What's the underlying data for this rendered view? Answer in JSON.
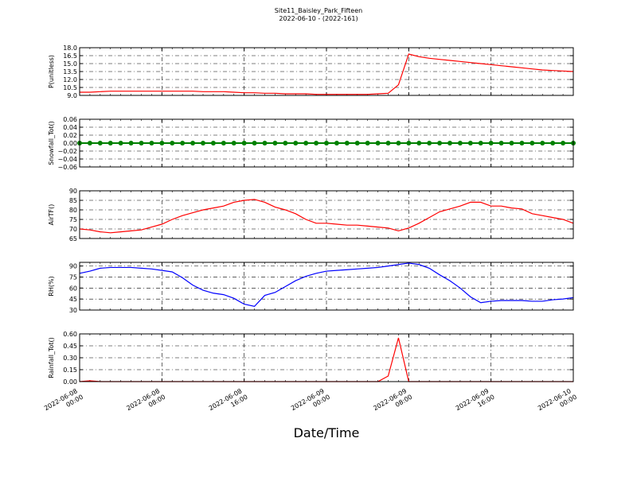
{
  "title": "Site11_Baisley_Park_Fifteen",
  "subtitle": "2022-06-10 - (2022-161)",
  "xlabel": "Date/Time",
  "xlim": [
    "2022-06-08 00:00",
    "2022-06-10 00:00"
  ],
  "xticks": [
    "2022-06-08 00:00",
    "2022-06-08 08:00",
    "2022-06-08 16:00",
    "2022-06-09 00:00",
    "2022-06-09 08:00",
    "2022-06-09 16:00",
    "2022-06-10 00:00"
  ],
  "grid": true,
  "x": [
    "2022-06-08 00:00",
    "2022-06-08 01:00",
    "2022-06-08 02:00",
    "2022-06-08 03:00",
    "2022-06-08 04:00",
    "2022-06-08 05:00",
    "2022-06-08 06:00",
    "2022-06-08 07:00",
    "2022-06-08 08:00",
    "2022-06-08 09:00",
    "2022-06-08 10:00",
    "2022-06-08 11:00",
    "2022-06-08 12:00",
    "2022-06-08 13:00",
    "2022-06-08 14:00",
    "2022-06-08 15:00",
    "2022-06-08 16:00",
    "2022-06-08 17:00",
    "2022-06-08 18:00",
    "2022-06-08 19:00",
    "2022-06-08 20:00",
    "2022-06-08 21:00",
    "2022-06-08 22:00",
    "2022-06-08 23:00",
    "2022-06-09 00:00",
    "2022-06-09 01:00",
    "2022-06-09 02:00",
    "2022-06-09 03:00",
    "2022-06-09 04:00",
    "2022-06-09 05:00",
    "2022-06-09 06:00",
    "2022-06-09 07:00",
    "2022-06-09 08:00",
    "2022-06-09 09:00",
    "2022-06-09 10:00",
    "2022-06-09 11:00",
    "2022-06-09 12:00",
    "2022-06-09 13:00",
    "2022-06-09 14:00",
    "2022-06-09 15:00",
    "2022-06-09 16:00",
    "2022-06-09 17:00",
    "2022-06-09 18:00",
    "2022-06-09 19:00",
    "2022-06-09 20:00",
    "2022-06-09 21:00",
    "2022-06-09 22:00",
    "2022-06-09 23:00",
    "2022-06-10 00:00"
  ],
  "chart_data": [
    {
      "type": "line",
      "ylabel": "P(unitless)",
      "color": "#ff0000",
      "markers": false,
      "ylim": [
        9,
        18
      ],
      "yticks": [
        {
          "value": 9,
          "label": "9.0"
        },
        {
          "value": 10.5,
          "label": "10.5"
        },
        {
          "value": 12,
          "label": "12.0"
        },
        {
          "value": 13.5,
          "label": "13.5"
        },
        {
          "value": 15,
          "label": "15.0"
        },
        {
          "value": 16.5,
          "label": "16.5"
        },
        {
          "value": 18,
          "label": "18.0"
        }
      ],
      "values": [
        9.6,
        9.6,
        9.7,
        9.8,
        9.8,
        9.8,
        9.8,
        9.8,
        9.8,
        9.8,
        9.8,
        9.8,
        9.7,
        9.7,
        9.7,
        9.6,
        9.5,
        9.5,
        9.4,
        9.4,
        9.3,
        9.3,
        9.3,
        9.2,
        9.2,
        9.2,
        9.2,
        9.2,
        9.2,
        9.3,
        9.4,
        11.0,
        16.8,
        16.3,
        16.0,
        15.8,
        15.6,
        15.4,
        15.2,
        15.0,
        14.8,
        14.6,
        14.4,
        14.2,
        14.0,
        13.8,
        13.7,
        13.6,
        13.5
      ]
    },
    {
      "type": "line",
      "ylabel": "Snowfall_Tot()",
      "color": "#008000",
      "markers": true,
      "ylim": [
        -0.06,
        0.06
      ],
      "yticks": [
        {
          "value": -0.06,
          "label": "−0.06"
        },
        {
          "value": -0.04,
          "label": "−0.04"
        },
        {
          "value": -0.02,
          "label": "−0.02"
        },
        {
          "value": 0,
          "label": "0.00"
        },
        {
          "value": 0.02,
          "label": "0.02"
        },
        {
          "value": 0.04,
          "label": "0.04"
        },
        {
          "value": 0.06,
          "label": "0.06"
        }
      ],
      "values": [
        0,
        0,
        0,
        0,
        0,
        0,
        0,
        0,
        0,
        0,
        0,
        0,
        0,
        0,
        0,
        0,
        0,
        0,
        0,
        0,
        0,
        0,
        0,
        0,
        0,
        0,
        0,
        0,
        0,
        0,
        0,
        0,
        0,
        0,
        0,
        0,
        0,
        0,
        0,
        0,
        0,
        0,
        0,
        0,
        0,
        0,
        0,
        0,
        0
      ]
    },
    {
      "type": "line",
      "ylabel": "AirTF()",
      "color": "#ff0000",
      "markers": false,
      "ylim": [
        65,
        90
      ],
      "yticks": [
        65,
        70,
        75,
        80,
        85,
        90
      ],
      "values": [
        70,
        69.5,
        68.5,
        68,
        68.5,
        69,
        69.5,
        71,
        72.5,
        75,
        77,
        78.5,
        80,
        81,
        82,
        84,
        85,
        85.5,
        84,
        81.5,
        80,
        78,
        75,
        73,
        73,
        72.5,
        72,
        72,
        71.5,
        71,
        70.5,
        69,
        70.5,
        73,
        76,
        79,
        80.5,
        82,
        84,
        84,
        82,
        82,
        81,
        80.5,
        78,
        77,
        76,
        75,
        73
      ]
    },
    {
      "type": "line",
      "ylabel": "RH(%)",
      "color": "#0000ff",
      "markers": false,
      "ylim": [
        30,
        95
      ],
      "yticks": [
        30,
        45,
        60,
        75,
        90
      ],
      "values": [
        80,
        83,
        87,
        88,
        88,
        88,
        87,
        86,
        84,
        82,
        74,
        64,
        57,
        53,
        51,
        46,
        38,
        35,
        50,
        54,
        62,
        70,
        76,
        80,
        83,
        84,
        85,
        86,
        87,
        88,
        90,
        92,
        94,
        92,
        87,
        78,
        70,
        60,
        48,
        40,
        42,
        43,
        43,
        43,
        42,
        42,
        44,
        45,
        47
      ]
    },
    {
      "type": "line",
      "ylabel": "Rainfall_Tot()",
      "color": "#ff0000",
      "markers": false,
      "ylim": [
        0,
        0.6
      ],
      "yticks": [
        {
          "value": 0,
          "label": "0.00"
        },
        {
          "value": 0.15,
          "label": "0.15"
        },
        {
          "value": 0.3,
          "label": "0.30"
        },
        {
          "value": 0.45,
          "label": "0.45"
        },
        {
          "value": 0.6,
          "label": "0.60"
        }
      ],
      "values": [
        0,
        0.01,
        0,
        0,
        0,
        0,
        0,
        0,
        0,
        0,
        0,
        0,
        0,
        0,
        0,
        0,
        0,
        0,
        0,
        0,
        0,
        0,
        0,
        0,
        0,
        0,
        0,
        0,
        0,
        0,
        0.07,
        0.55,
        0,
        0,
        0,
        0,
        0,
        0,
        0,
        0,
        0,
        0,
        0,
        0,
        0,
        0,
        0,
        0,
        0
      ]
    }
  ]
}
